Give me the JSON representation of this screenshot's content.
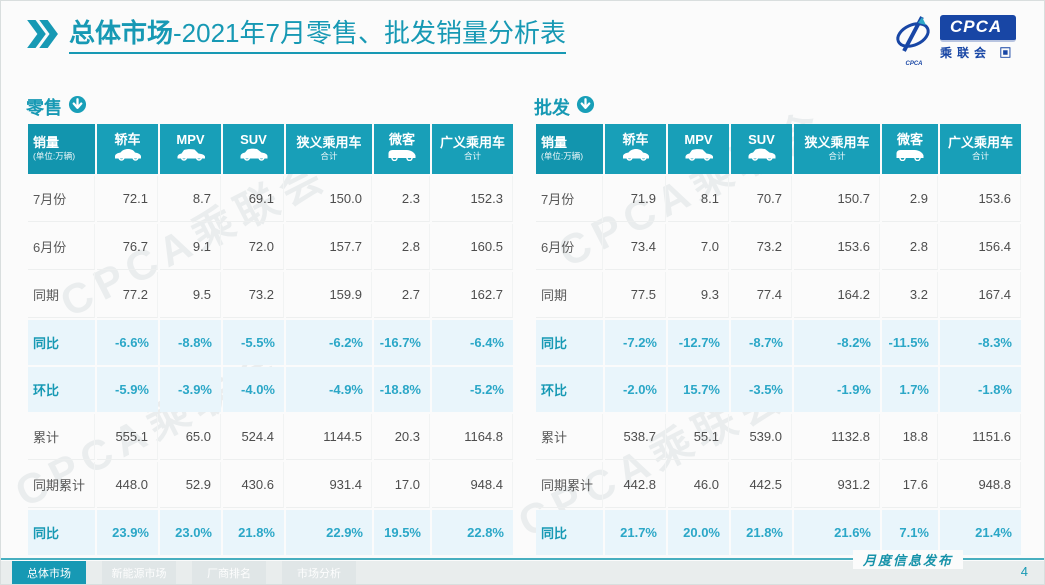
{
  "slide": {
    "title_prefix": "总体市场",
    "title_rest": "-2021年7月零售、批发销量分析表",
    "footer_note": "月度信息发布",
    "page_number": "4",
    "watermark": "CPCA乘联会"
  },
  "logo": {
    "cpca_text": "CPCA",
    "sub_text": "乘联会",
    "mini_text": "CPCA",
    "icons": [
      "cpca-swirl-icon",
      "grid-seal-icon"
    ]
  },
  "icons": {
    "title_marker": "double-chevron-right-icon",
    "section_marker": "circle-down-arrow-icon",
    "header_vehicles": [
      "sedan-icon",
      "mpv-icon",
      "suv-icon",
      "van-icon"
    ]
  },
  "colors": {
    "accent": "#1799B4",
    "header_bg": "#189FB8",
    "highlight_bg": "#E9F5FB",
    "highlight_text": "#2BA7C7",
    "logo_blue": "#1846A5"
  },
  "table_header_cells": [
    {
      "title": "销量",
      "subtitle": "(单位:万辆)",
      "icon": ""
    },
    {
      "title": "轿车",
      "subtitle": "",
      "icon": "sedan-icon"
    },
    {
      "title": "MPV",
      "subtitle": "",
      "icon": "mpv-icon"
    },
    {
      "title": "SUV",
      "subtitle": "",
      "icon": "suv-icon"
    },
    {
      "title": "狭义乘用车",
      "subtitle": "合计",
      "icon": ""
    },
    {
      "title": "微客",
      "subtitle": "",
      "icon": "van-icon"
    },
    {
      "title": "广义乘用车",
      "subtitle": "合计",
      "icon": ""
    }
  ],
  "chart_data": [
    {
      "type": "table",
      "title": "零售",
      "unit_note": "(单位:万辆)",
      "columns": [
        "销量",
        "轿车",
        "MPV",
        "SUV",
        "狭义乘用车合计",
        "微客",
        "广义乘用车合计"
      ],
      "rows": [
        {
          "label": "7月份",
          "values": [
            "72.1",
            "8.7",
            "69.1",
            "150.0",
            "2.3",
            "152.3"
          ],
          "highlight": false
        },
        {
          "label": "6月份",
          "values": [
            "76.7",
            "9.1",
            "72.0",
            "157.7",
            "2.8",
            "160.5"
          ],
          "highlight": false
        },
        {
          "label": "同期",
          "values": [
            "77.2",
            "9.5",
            "73.2",
            "159.9",
            "2.7",
            "162.7"
          ],
          "highlight": false
        },
        {
          "label": "同比",
          "values": [
            "-6.6%",
            "-8.8%",
            "-5.5%",
            "-6.2%",
            "-16.7%",
            "-6.4%"
          ],
          "highlight": true
        },
        {
          "label": "环比",
          "values": [
            "-5.9%",
            "-3.9%",
            "-4.0%",
            "-4.9%",
            "-18.8%",
            "-5.2%"
          ],
          "highlight": true
        },
        {
          "label": "累计",
          "values": [
            "555.1",
            "65.0",
            "524.4",
            "1144.5",
            "20.3",
            "1164.8"
          ],
          "highlight": false
        },
        {
          "label": "同期累计",
          "values": [
            "448.0",
            "52.9",
            "430.6",
            "931.4",
            "17.0",
            "948.4"
          ],
          "highlight": false
        },
        {
          "label": "同比",
          "values": [
            "23.9%",
            "23.0%",
            "21.8%",
            "22.9%",
            "19.5%",
            "22.8%"
          ],
          "highlight": true
        }
      ]
    },
    {
      "type": "table",
      "title": "批发",
      "unit_note": "(单位:万辆)",
      "columns": [
        "销量",
        "轿车",
        "MPV",
        "SUV",
        "狭义乘用车合计",
        "微客",
        "广义乘用车合计"
      ],
      "rows": [
        {
          "label": "7月份",
          "values": [
            "71.9",
            "8.1",
            "70.7",
            "150.7",
            "2.9",
            "153.6"
          ],
          "highlight": false
        },
        {
          "label": "6月份",
          "values": [
            "73.4",
            "7.0",
            "73.2",
            "153.6",
            "2.8",
            "156.4"
          ],
          "highlight": false
        },
        {
          "label": "同期",
          "values": [
            "77.5",
            "9.3",
            "77.4",
            "164.2",
            "3.2",
            "167.4"
          ],
          "highlight": false
        },
        {
          "label": "同比",
          "values": [
            "-7.2%",
            "-12.7%",
            "-8.7%",
            "-8.2%",
            "-11.5%",
            "-8.3%"
          ],
          "highlight": true
        },
        {
          "label": "环比",
          "values": [
            "-2.0%",
            "15.7%",
            "-3.5%",
            "-1.9%",
            "1.7%",
            "-1.8%"
          ],
          "highlight": true
        },
        {
          "label": "累计",
          "values": [
            "538.7",
            "55.1",
            "539.0",
            "1132.8",
            "18.8",
            "1151.6"
          ],
          "highlight": false
        },
        {
          "label": "同期累计",
          "values": [
            "442.8",
            "46.0",
            "442.5",
            "931.2",
            "17.6",
            "948.8"
          ],
          "highlight": false
        },
        {
          "label": "同比",
          "values": [
            "21.7%",
            "20.0%",
            "21.8%",
            "21.6%",
            "7.1%",
            "21.4%"
          ],
          "highlight": true
        }
      ]
    }
  ],
  "footer_tabs": [
    {
      "label": "总体市场",
      "active": true
    },
    {
      "label": "新能源市场",
      "active": false
    },
    {
      "label": "厂商排名",
      "active": false
    },
    {
      "label": "市场分析",
      "active": false
    }
  ]
}
